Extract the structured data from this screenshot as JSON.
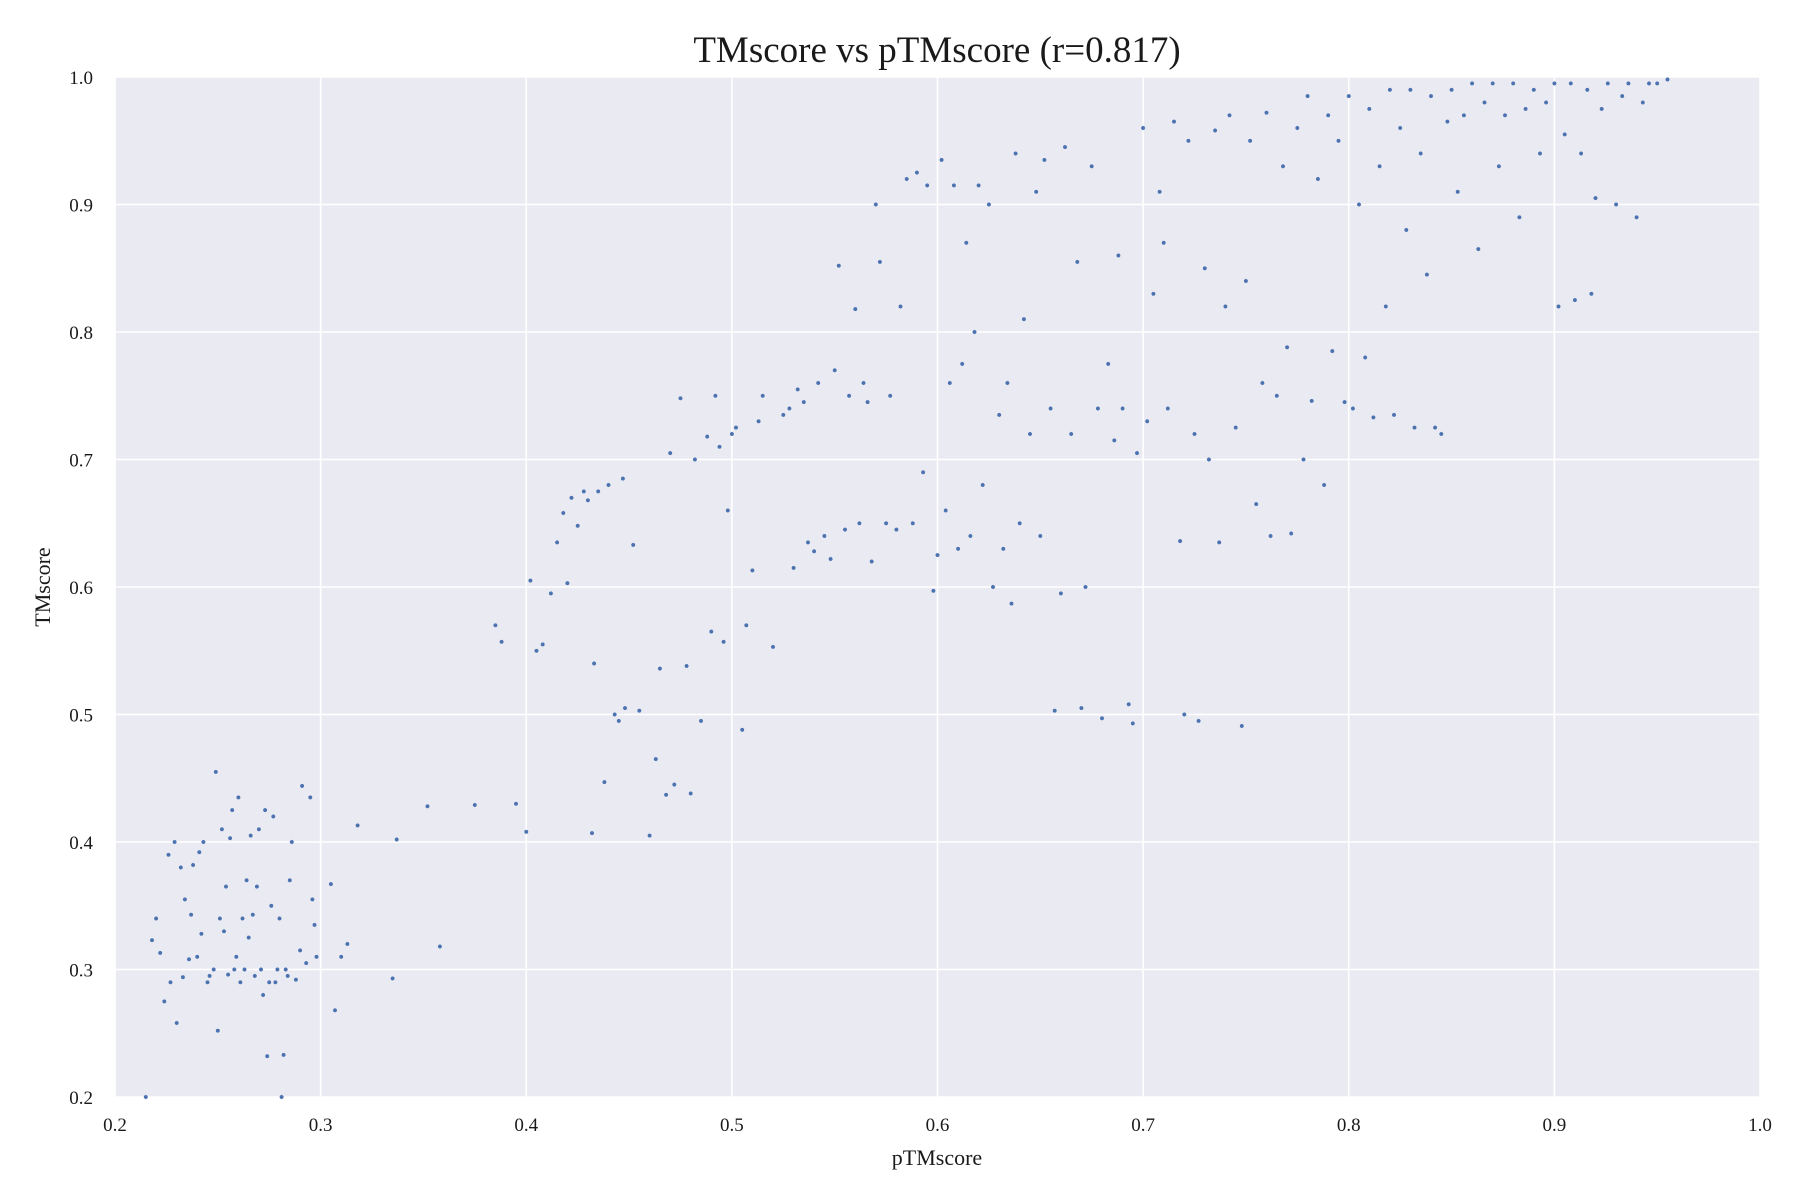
{
  "chart_data": {
    "type": "scatter",
    "title": "TMscore vs pTMscore (r=0.817)",
    "xlabel": "pTMscore",
    "ylabel": "TMscore",
    "xlim": [
      0.2,
      1.0
    ],
    "ylim": [
      0.2,
      1.0
    ],
    "xticks": [
      "0.2",
      "0.3",
      "0.4",
      "0.5",
      "0.6",
      "0.7",
      "0.8",
      "0.9",
      "1.0"
    ],
    "yticks": [
      "0.2",
      "0.3",
      "0.4",
      "0.5",
      "0.6",
      "0.7",
      "0.8",
      "0.9",
      "1.0"
    ],
    "grid": true,
    "colors": {
      "background": "#eaeaf2",
      "points": "#4c72b0",
      "grid": "#ffffff"
    },
    "series": [
      {
        "points": [
          [
            0.215,
            0.2
          ],
          [
            0.218,
            0.323
          ],
          [
            0.22,
            0.34
          ],
          [
            0.222,
            0.313
          ],
          [
            0.224,
            0.275
          ],
          [
            0.226,
            0.39
          ],
          [
            0.227,
            0.29
          ],
          [
            0.229,
            0.4
          ],
          [
            0.23,
            0.258
          ],
          [
            0.232,
            0.38
          ],
          [
            0.233,
            0.294
          ],
          [
            0.234,
            0.355
          ],
          [
            0.236,
            0.308
          ],
          [
            0.237,
            0.343
          ],
          [
            0.238,
            0.382
          ],
          [
            0.24,
            0.31
          ],
          [
            0.241,
            0.392
          ],
          [
            0.242,
            0.328
          ],
          [
            0.243,
            0.4
          ],
          [
            0.245,
            0.29
          ],
          [
            0.246,
            0.295
          ],
          [
            0.248,
            0.3
          ],
          [
            0.249,
            0.455
          ],
          [
            0.25,
            0.252
          ],
          [
            0.251,
            0.34
          ],
          [
            0.252,
            0.41
          ],
          [
            0.253,
            0.33
          ],
          [
            0.254,
            0.365
          ],
          [
            0.255,
            0.296
          ],
          [
            0.256,
            0.403
          ],
          [
            0.257,
            0.425
          ],
          [
            0.258,
            0.3
          ],
          [
            0.259,
            0.31
          ],
          [
            0.26,
            0.435
          ],
          [
            0.261,
            0.29
          ],
          [
            0.262,
            0.34
          ],
          [
            0.263,
            0.3
          ],
          [
            0.264,
            0.37
          ],
          [
            0.265,
            0.325
          ],
          [
            0.266,
            0.405
          ],
          [
            0.267,
            0.343
          ],
          [
            0.268,
            0.295
          ],
          [
            0.269,
            0.365
          ],
          [
            0.27,
            0.41
          ],
          [
            0.271,
            0.3
          ],
          [
            0.272,
            0.28
          ],
          [
            0.273,
            0.425
          ],
          [
            0.274,
            0.232
          ],
          [
            0.275,
            0.29
          ],
          [
            0.276,
            0.35
          ],
          [
            0.277,
            0.42
          ],
          [
            0.278,
            0.29
          ],
          [
            0.279,
            0.3
          ],
          [
            0.28,
            0.34
          ],
          [
            0.281,
            0.2
          ],
          [
            0.282,
            0.233
          ],
          [
            0.283,
            0.3
          ],
          [
            0.284,
            0.295
          ],
          [
            0.285,
            0.37
          ],
          [
            0.286,
            0.4
          ],
          [
            0.288,
            0.292
          ],
          [
            0.29,
            0.315
          ],
          [
            0.291,
            0.444
          ],
          [
            0.293,
            0.305
          ],
          [
            0.295,
            0.435
          ],
          [
            0.296,
            0.355
          ],
          [
            0.297,
            0.335
          ],
          [
            0.298,
            0.31
          ],
          [
            0.305,
            0.367
          ],
          [
            0.307,
            0.268
          ],
          [
            0.31,
            0.31
          ],
          [
            0.313,
            0.32
          ],
          [
            0.318,
            0.413
          ],
          [
            0.335,
            0.293
          ],
          [
            0.337,
            0.402
          ],
          [
            0.352,
            0.428
          ],
          [
            0.358,
            0.318
          ],
          [
            0.375,
            0.429
          ],
          [
            0.385,
            0.57
          ],
          [
            0.388,
            0.557
          ],
          [
            0.395,
            0.43
          ],
          [
            0.4,
            0.408
          ],
          [
            0.402,
            0.605
          ],
          [
            0.405,
            0.55
          ],
          [
            0.408,
            0.555
          ],
          [
            0.412,
            0.595
          ],
          [
            0.415,
            0.635
          ],
          [
            0.418,
            0.658
          ],
          [
            0.42,
            0.603
          ],
          [
            0.422,
            0.67
          ],
          [
            0.425,
            0.648
          ],
          [
            0.428,
            0.675
          ],
          [
            0.43,
            0.668
          ],
          [
            0.432,
            0.407
          ],
          [
            0.433,
            0.54
          ],
          [
            0.435,
            0.675
          ],
          [
            0.438,
            0.447
          ],
          [
            0.44,
            0.68
          ],
          [
            0.443,
            0.5
          ],
          [
            0.445,
            0.495
          ],
          [
            0.447,
            0.685
          ],
          [
            0.448,
            0.505
          ],
          [
            0.452,
            0.633
          ],
          [
            0.455,
            0.503
          ],
          [
            0.46,
            0.405
          ],
          [
            0.463,
            0.465
          ],
          [
            0.465,
            0.536
          ],
          [
            0.468,
            0.437
          ],
          [
            0.47,
            0.705
          ],
          [
            0.472,
            0.445
          ],
          [
            0.475,
            0.748
          ],
          [
            0.478,
            0.538
          ],
          [
            0.48,
            0.438
          ],
          [
            0.482,
            0.7
          ],
          [
            0.485,
            0.495
          ],
          [
            0.488,
            0.718
          ],
          [
            0.49,
            0.565
          ],
          [
            0.492,
            0.75
          ],
          [
            0.494,
            0.71
          ],
          [
            0.496,
            0.557
          ],
          [
            0.498,
            0.66
          ],
          [
            0.5,
            0.72
          ],
          [
            0.502,
            0.725
          ],
          [
            0.505,
            0.488
          ],
          [
            0.507,
            0.57
          ],
          [
            0.51,
            0.613
          ],
          [
            0.513,
            0.73
          ],
          [
            0.515,
            0.75
          ],
          [
            0.52,
            0.553
          ],
          [
            0.525,
            0.735
          ],
          [
            0.528,
            0.74
          ],
          [
            0.53,
            0.615
          ],
          [
            0.532,
            0.755
          ],
          [
            0.535,
            0.745
          ],
          [
            0.537,
            0.635
          ],
          [
            0.54,
            0.628
          ],
          [
            0.542,
            0.76
          ],
          [
            0.545,
            0.64
          ],
          [
            0.548,
            0.622
          ],
          [
            0.55,
            0.77
          ],
          [
            0.552,
            0.852
          ],
          [
            0.555,
            0.645
          ],
          [
            0.557,
            0.75
          ],
          [
            0.56,
            0.818
          ],
          [
            0.562,
            0.65
          ],
          [
            0.564,
            0.76
          ],
          [
            0.566,
            0.745
          ],
          [
            0.568,
            0.62
          ],
          [
            0.57,
            0.9
          ],
          [
            0.572,
            0.855
          ],
          [
            0.575,
            0.65
          ],
          [
            0.577,
            0.75
          ],
          [
            0.58,
            0.645
          ],
          [
            0.582,
            0.82
          ],
          [
            0.585,
            0.92
          ],
          [
            0.588,
            0.65
          ],
          [
            0.59,
            0.925
          ],
          [
            0.593,
            0.69
          ],
          [
            0.595,
            0.915
          ],
          [
            0.598,
            0.597
          ],
          [
            0.6,
            0.625
          ],
          [
            0.602,
            0.935
          ],
          [
            0.604,
            0.66
          ],
          [
            0.606,
            0.76
          ],
          [
            0.608,
            0.915
          ],
          [
            0.61,
            0.63
          ],
          [
            0.612,
            0.775
          ],
          [
            0.614,
            0.87
          ],
          [
            0.616,
            0.64
          ],
          [
            0.618,
            0.8
          ],
          [
            0.62,
            0.915
          ],
          [
            0.622,
            0.68
          ],
          [
            0.625,
            0.9
          ],
          [
            0.627,
            0.6
          ],
          [
            0.63,
            0.735
          ],
          [
            0.632,
            0.63
          ],
          [
            0.634,
            0.76
          ],
          [
            0.636,
            0.587
          ],
          [
            0.638,
            0.94
          ],
          [
            0.64,
            0.65
          ],
          [
            0.642,
            0.81
          ],
          [
            0.645,
            0.72
          ],
          [
            0.648,
            0.91
          ],
          [
            0.65,
            0.64
          ],
          [
            0.652,
            0.935
          ],
          [
            0.655,
            0.74
          ],
          [
            0.657,
            0.503
          ],
          [
            0.66,
            0.595
          ],
          [
            0.662,
            0.945
          ],
          [
            0.665,
            0.72
          ],
          [
            0.668,
            0.855
          ],
          [
            0.67,
            0.505
          ],
          [
            0.672,
            0.6
          ],
          [
            0.675,
            0.93
          ],
          [
            0.678,
            0.74
          ],
          [
            0.68,
            0.497
          ],
          [
            0.683,
            0.775
          ],
          [
            0.686,
            0.715
          ],
          [
            0.688,
            0.86
          ],
          [
            0.69,
            0.74
          ],
          [
            0.693,
            0.508
          ],
          [
            0.695,
            0.493
          ],
          [
            0.697,
            0.705
          ],
          [
            0.7,
            0.96
          ],
          [
            0.702,
            0.73
          ],
          [
            0.705,
            0.83
          ],
          [
            0.708,
            0.91
          ],
          [
            0.71,
            0.87
          ],
          [
            0.712,
            0.74
          ],
          [
            0.715,
            0.965
          ],
          [
            0.718,
            0.636
          ],
          [
            0.72,
            0.5
          ],
          [
            0.722,
            0.95
          ],
          [
            0.725,
            0.72
          ],
          [
            0.727,
            0.495
          ],
          [
            0.73,
            0.85
          ],
          [
            0.732,
            0.7
          ],
          [
            0.735,
            0.958
          ],
          [
            0.737,
            0.635
          ],
          [
            0.74,
            0.82
          ],
          [
            0.742,
            0.97
          ],
          [
            0.745,
            0.725
          ],
          [
            0.748,
            0.491
          ],
          [
            0.75,
            0.84
          ],
          [
            0.752,
            0.95
          ],
          [
            0.755,
            0.665
          ],
          [
            0.758,
            0.76
          ],
          [
            0.76,
            0.972
          ],
          [
            0.762,
            0.64
          ],
          [
            0.765,
            0.75
          ],
          [
            0.768,
            0.93
          ],
          [
            0.77,
            0.788
          ],
          [
            0.772,
            0.642
          ],
          [
            0.775,
            0.96
          ],
          [
            0.778,
            0.7
          ],
          [
            0.78,
            0.985
          ],
          [
            0.782,
            0.746
          ],
          [
            0.785,
            0.92
          ],
          [
            0.788,
            0.68
          ],
          [
            0.79,
            0.97
          ],
          [
            0.792,
            0.785
          ],
          [
            0.795,
            0.95
          ],
          [
            0.798,
            0.745
          ],
          [
            0.8,
            0.985
          ],
          [
            0.802,
            0.74
          ],
          [
            0.805,
            0.9
          ],
          [
            0.808,
            0.78
          ],
          [
            0.81,
            0.975
          ],
          [
            0.812,
            0.733
          ],
          [
            0.815,
            0.93
          ],
          [
            0.818,
            0.82
          ],
          [
            0.82,
            0.99
          ],
          [
            0.822,
            0.735
          ],
          [
            0.825,
            0.96
          ],
          [
            0.828,
            0.88
          ],
          [
            0.83,
            0.99
          ],
          [
            0.832,
            0.725
          ],
          [
            0.835,
            0.94
          ],
          [
            0.838,
            0.845
          ],
          [
            0.84,
            0.985
          ],
          [
            0.842,
            0.725
          ],
          [
            0.845,
            0.72
          ],
          [
            0.848,
            0.965
          ],
          [
            0.85,
            0.99
          ],
          [
            0.853,
            0.91
          ],
          [
            0.856,
            0.97
          ],
          [
            0.86,
            0.995
          ],
          [
            0.863,
            0.865
          ],
          [
            0.866,
            0.98
          ],
          [
            0.87,
            0.995
          ],
          [
            0.873,
            0.93
          ],
          [
            0.876,
            0.97
          ],
          [
            0.88,
            0.995
          ],
          [
            0.883,
            0.89
          ],
          [
            0.886,
            0.975
          ],
          [
            0.89,
            0.99
          ],
          [
            0.893,
            0.94
          ],
          [
            0.896,
            0.98
          ],
          [
            0.9,
            0.995
          ],
          [
            0.902,
            0.82
          ],
          [
            0.905,
            0.955
          ],
          [
            0.908,
            0.995
          ],
          [
            0.91,
            0.825
          ],
          [
            0.913,
            0.94
          ],
          [
            0.916,
            0.99
          ],
          [
            0.918,
            0.83
          ],
          [
            0.92,
            0.905
          ],
          [
            0.923,
            0.975
          ],
          [
            0.926,
            0.995
          ],
          [
            0.93,
            0.9
          ],
          [
            0.933,
            0.985
          ],
          [
            0.936,
            0.995
          ],
          [
            0.94,
            0.89
          ],
          [
            0.943,
            0.98
          ],
          [
            0.946,
            0.995
          ],
          [
            0.95,
            0.995
          ],
          [
            0.955,
            0.998
          ]
        ]
      }
    ]
  }
}
